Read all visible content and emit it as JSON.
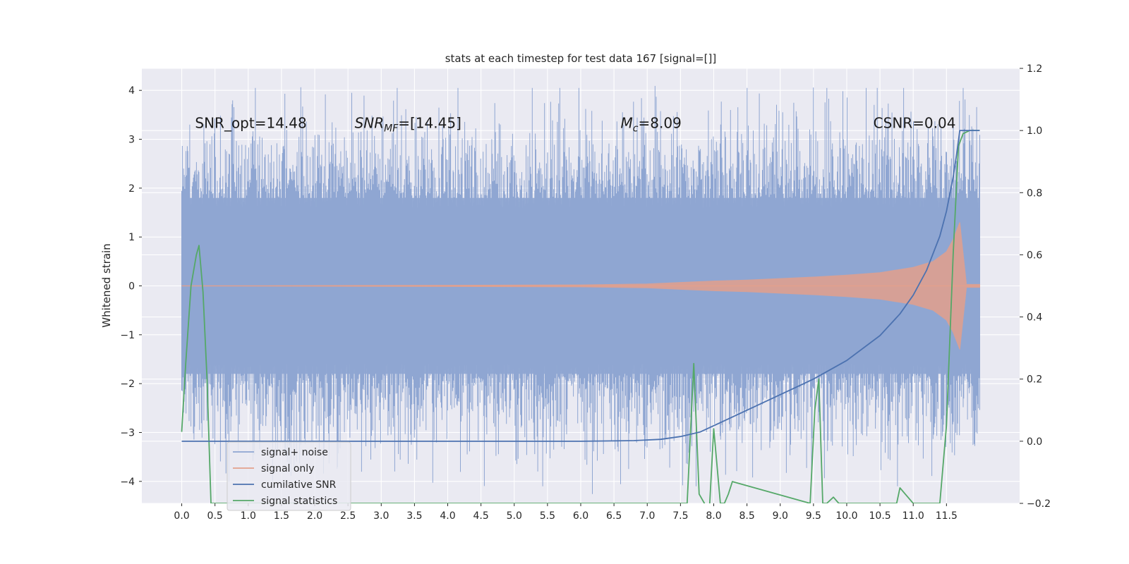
{
  "chart_data": {
    "type": "line",
    "title": "stats at each timestep for test data 167 [signal=[]]",
    "xlabel": "",
    "ylabel": "Whitened strain",
    "y2label": "",
    "xlim": [
      -0.6,
      12.6
    ],
    "ylim": [
      -4.45,
      4.45
    ],
    "y2lim": [
      -0.2,
      1.2
    ],
    "grid": true,
    "x_ticks": [
      0.0,
      0.5,
      1.0,
      1.5,
      2.0,
      2.5,
      3.0,
      3.5,
      4.0,
      4.5,
      5.0,
      5.5,
      6.0,
      6.5,
      7.0,
      7.5,
      8.0,
      8.5,
      9.0,
      9.5,
      10.0,
      10.5,
      11.0,
      11.5
    ],
    "x_tick_labels": [
      "0.0",
      "0.5",
      "1.0",
      "1.5",
      "2.0",
      "2.5",
      "3.0",
      "3.5",
      "4.0",
      "4.5",
      "5.0",
      "5.5",
      "6.0",
      "6.5",
      "7.0",
      "7.5",
      "8.0",
      "8.5",
      "9.0",
      "9.5",
      "10.0",
      "10.5",
      "11.0",
      "11.5"
    ],
    "y_ticks": [
      4,
      3,
      2,
      1,
      0,
      -1,
      -2,
      -3,
      -4
    ],
    "y_tick_labels": [
      "4",
      "3",
      "2",
      "1",
      "0",
      "−1",
      "−2",
      "−3",
      "−4"
    ],
    "y2_ticks": [
      1.2,
      1.0,
      0.8,
      0.6,
      0.4,
      0.2,
      0.0,
      -0.2
    ],
    "y2_tick_labels": [
      "1.2",
      "1.0",
      "0.8",
      "0.6",
      "0.4",
      "0.2",
      "0.0",
      "−0.2"
    ],
    "annotations": [
      {
        "text": "SNR_opt=14.48",
        "x": 0.2,
        "y": 3.3
      },
      {
        "text": "SNR",
        "sub": "MF",
        "rest": "=[14.45]",
        "x": 2.6,
        "y": 3.3
      },
      {
        "text": "M",
        "sub": "c",
        "rest": "=8.09",
        "x": 6.6,
        "y": 3.3
      },
      {
        "text": "CSNR=0.04",
        "x": 10.4,
        "y": 3.3
      }
    ],
    "legend": {
      "placement": "lower-left",
      "entries": [
        {
          "label": "signal+ noise",
          "color": "#8fa6d2"
        },
        {
          "label": "signal only",
          "color": "#e3a08c"
        },
        {
          "label": "cumilative SNR",
          "color": "#4c72b0"
        },
        {
          "label": "signal statistics",
          "color": "#55a868"
        }
      ]
    },
    "series": [
      {
        "name": "signal+ noise",
        "axis": "left",
        "color": "#8fa6d2",
        "style": "noise-band",
        "x_start": 0.0,
        "x_end": 12.0,
        "typical_amplitude": 1.8,
        "peak_max": 4.05,
        "peak_min": -4.1
      },
      {
        "name": "signal only",
        "axis": "left",
        "color": "#e3a08c",
        "style": "chirp-envelope",
        "x": [
          0.0,
          6.0,
          7.0,
          7.5,
          8.0,
          8.5,
          9.0,
          9.5,
          10.0,
          10.5,
          11.0,
          11.3,
          11.5,
          11.6,
          11.7,
          11.8,
          12.0
        ],
        "envelope": [
          0.0,
          0.02,
          0.04,
          0.07,
          0.1,
          0.12,
          0.15,
          0.18,
          0.22,
          0.27,
          0.38,
          0.5,
          0.7,
          0.95,
          1.3,
          0.03,
          0.03
        ]
      },
      {
        "name": "cumilative SNR",
        "axis": "right",
        "color": "#4c72b0",
        "x": [
          0.0,
          6.0,
          6.8,
          7.2,
          7.5,
          7.8,
          8.0,
          8.5,
          9.0,
          9.5,
          10.0,
          10.5,
          10.8,
          11.0,
          11.2,
          11.4,
          11.5,
          11.6,
          11.65,
          11.7,
          12.0
        ],
        "values": [
          0.0,
          0.0,
          0.002,
          0.006,
          0.015,
          0.03,
          0.05,
          0.1,
          0.15,
          0.2,
          0.26,
          0.34,
          0.41,
          0.47,
          0.55,
          0.66,
          0.74,
          0.85,
          0.92,
          1.0,
          1.0
        ]
      },
      {
        "name": "signal statistics",
        "axis": "right",
        "color": "#55a868",
        "x": [
          0.0,
          0.06,
          0.14,
          0.22,
          0.26,
          0.32,
          0.38,
          0.44,
          7.6,
          7.7,
          7.78,
          7.86,
          7.92,
          8.0,
          8.1,
          8.16,
          8.22,
          8.28,
          9.45,
          9.52,
          9.58,
          9.64,
          9.7,
          9.8,
          9.88,
          10.75,
          10.8,
          10.88,
          11.0,
          11.4,
          11.5,
          11.6,
          11.68,
          11.75,
          11.85,
          12.0
        ],
        "values": [
          0.03,
          0.25,
          0.5,
          0.6,
          0.63,
          0.48,
          0.2,
          -0.2,
          -0.2,
          0.25,
          -0.17,
          -0.2,
          -0.28,
          0.04,
          -0.2,
          -0.2,
          -0.17,
          -0.13,
          -0.2,
          0.1,
          0.2,
          -0.2,
          -0.2,
          -0.18,
          -0.2,
          -0.2,
          -0.15,
          -0.17,
          -0.2,
          -0.2,
          0.05,
          0.6,
          0.95,
          0.99,
          1.0,
          1.0
        ]
      }
    ]
  }
}
